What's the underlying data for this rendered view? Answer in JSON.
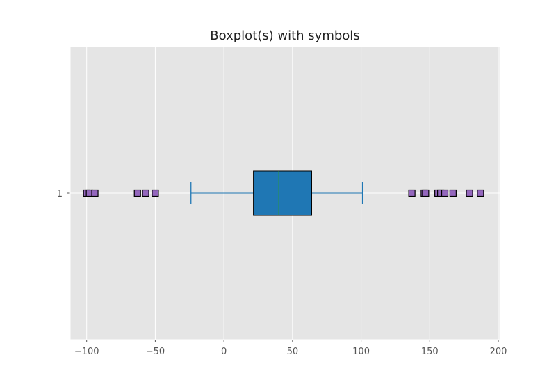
{
  "chart_data": {
    "type": "boxplot",
    "orientation": "horizontal",
    "title": "Boxplot(s) with symbols",
    "xlabel": "",
    "ylabel": "",
    "xlim": [
      -112,
      201
    ],
    "x_ticks": [
      -100,
      -50,
      0,
      50,
      100,
      150,
      200
    ],
    "x_tick_labels": [
      "−100",
      "−50",
      "0",
      "50",
      "100",
      "150",
      "200"
    ],
    "y_tick_labels": [
      "1"
    ],
    "grid": true,
    "boxes": [
      {
        "position": 1,
        "q1": 21.5,
        "median": 40,
        "q3": 64,
        "whisker_low": -24,
        "whisker_high": 101,
        "outliers": [
          -100,
          -98,
          -94,
          -63,
          -57,
          -50,
          137,
          146,
          147,
          156,
          158,
          161,
          167,
          179,
          187
        ]
      }
    ],
    "colors": {
      "axes_background": "#e5e5e5",
      "grid": "#ffffff",
      "box_fill": "#1f77b4",
      "box_edge": "#000000",
      "whisker": "#1f77b4",
      "median": "#2ca02c",
      "flier_fill": "#9467bd",
      "flier_edge": "#000000"
    },
    "flier_marker": "square"
  }
}
